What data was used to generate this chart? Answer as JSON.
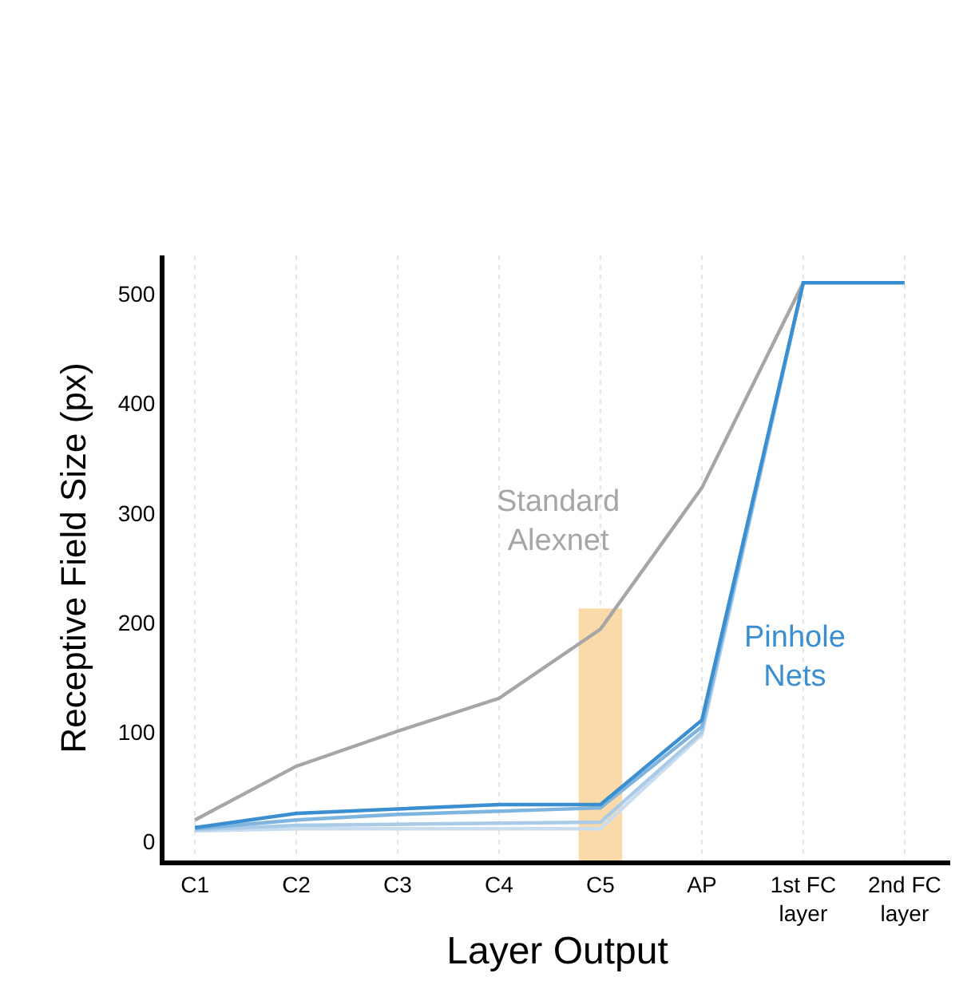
{
  "chart_data": {
    "type": "line",
    "xlabel": "Layer Output",
    "ylabel": "Receptive Field Size (px)",
    "categories": [
      "C1",
      "C2",
      "C3",
      "C4",
      "C5",
      "AP",
      "1st FC layer",
      "2nd FC layer"
    ],
    "series": [
      {
        "type": "bar",
        "color": "#f8d49a",
        "values": [
          null,
          null,
          null,
          null,
          230,
          null,
          null,
          null
        ],
        "base": [
          null,
          null,
          null,
          null,
          -17,
          null,
          null,
          null
        ]
      },
      {
        "name": "Standard Alexnet",
        "color": "#a6a6a6",
        "values": [
          20,
          69,
          101,
          131,
          194,
          323,
          510,
          null
        ]
      },
      {
        "color": "#c9ddef",
        "values": [
          10,
          12,
          12,
          12,
          12,
          98,
          510,
          null
        ]
      },
      {
        "color": "#a9cbe8",
        "values": [
          11,
          15,
          16,
          17,
          18,
          100,
          510,
          null
        ]
      },
      {
        "color": "#7fb4de",
        "values": [
          12,
          20,
          25,
          28,
          31,
          105,
          510,
          null
        ]
      },
      {
        "name": "Pinhole Nets",
        "color": "#3b8fd0",
        "values": [
          13,
          26,
          30,
          34,
          34,
          111,
          510,
          510
        ]
      }
    ],
    "ylim": [
      -17,
      535
    ],
    "yticks": [
      0,
      100,
      200,
      300,
      400,
      500
    ],
    "grid": "x",
    "legend": false,
    "marker": "none",
    "line_style": "solid"
  }
}
